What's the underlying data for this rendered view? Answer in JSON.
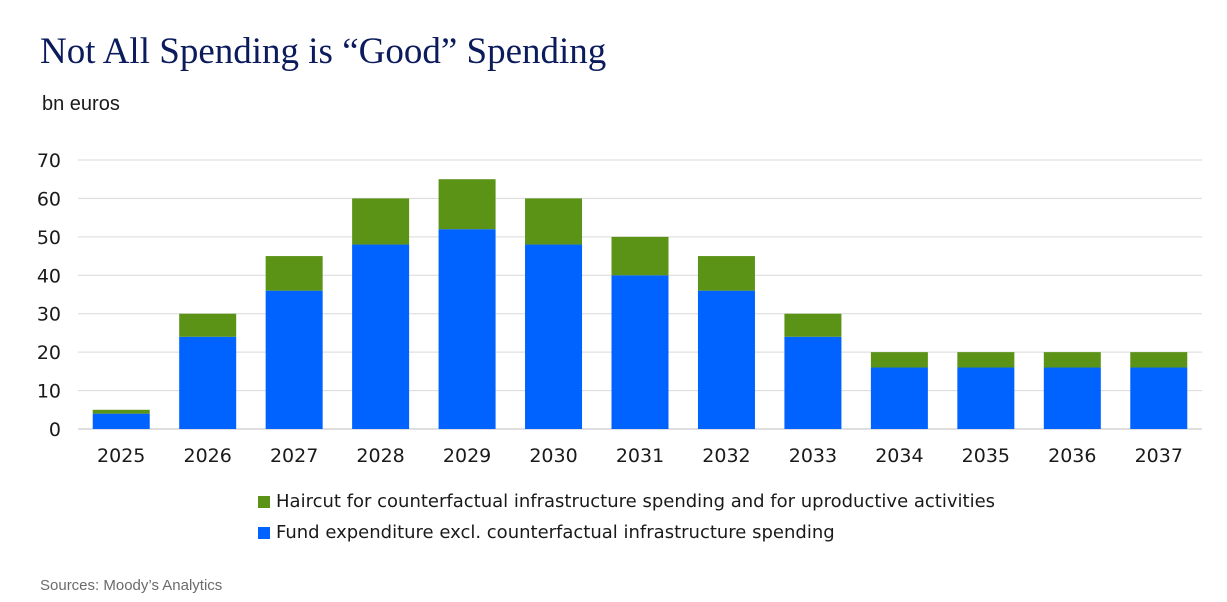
{
  "title": "Not All Spending is “Good” Spending",
  "subtitle": "bn euros",
  "source": "Sources: Moody’s Analytics",
  "colors": {
    "haircut": "#5b9317",
    "fund": "#0063ff",
    "grid": "#d9d9d9"
  },
  "chart_data": {
    "type": "bar",
    "stacked": true,
    "categories": [
      "2025",
      "2026",
      "2027",
      "2028",
      "2029",
      "2030",
      "2031",
      "2032",
      "2033",
      "2034",
      "2035",
      "2036",
      "2037"
    ],
    "series": [
      {
        "name": "Fund expenditure excl. counterfactual infrastructure spending",
        "color": "#0063ff",
        "values": [
          4,
          24,
          36,
          48,
          52,
          48,
          40,
          36,
          24,
          16,
          16,
          16,
          16
        ]
      },
      {
        "name": "Haircut for counterfactual infrastructure spending and for uproductive activities",
        "color": "#5b9317",
        "values": [
          1,
          6,
          9,
          12,
          13,
          12,
          10,
          9,
          6,
          4,
          4,
          4,
          4
        ]
      }
    ],
    "ylim": [
      0,
      70
    ],
    "yticks": [
      0,
      10,
      20,
      30,
      40,
      50,
      60,
      70
    ],
    "ylabel": "bn euros",
    "grid": true,
    "legend_position": "bottom"
  },
  "legend": [
    {
      "label": "Haircut for counterfactual infrastructure spending and for uproductive activities",
      "color": "#5b9317"
    },
    {
      "label": "Fund expenditure excl. counterfactual infrastructure spending",
      "color": "#0063ff"
    }
  ]
}
